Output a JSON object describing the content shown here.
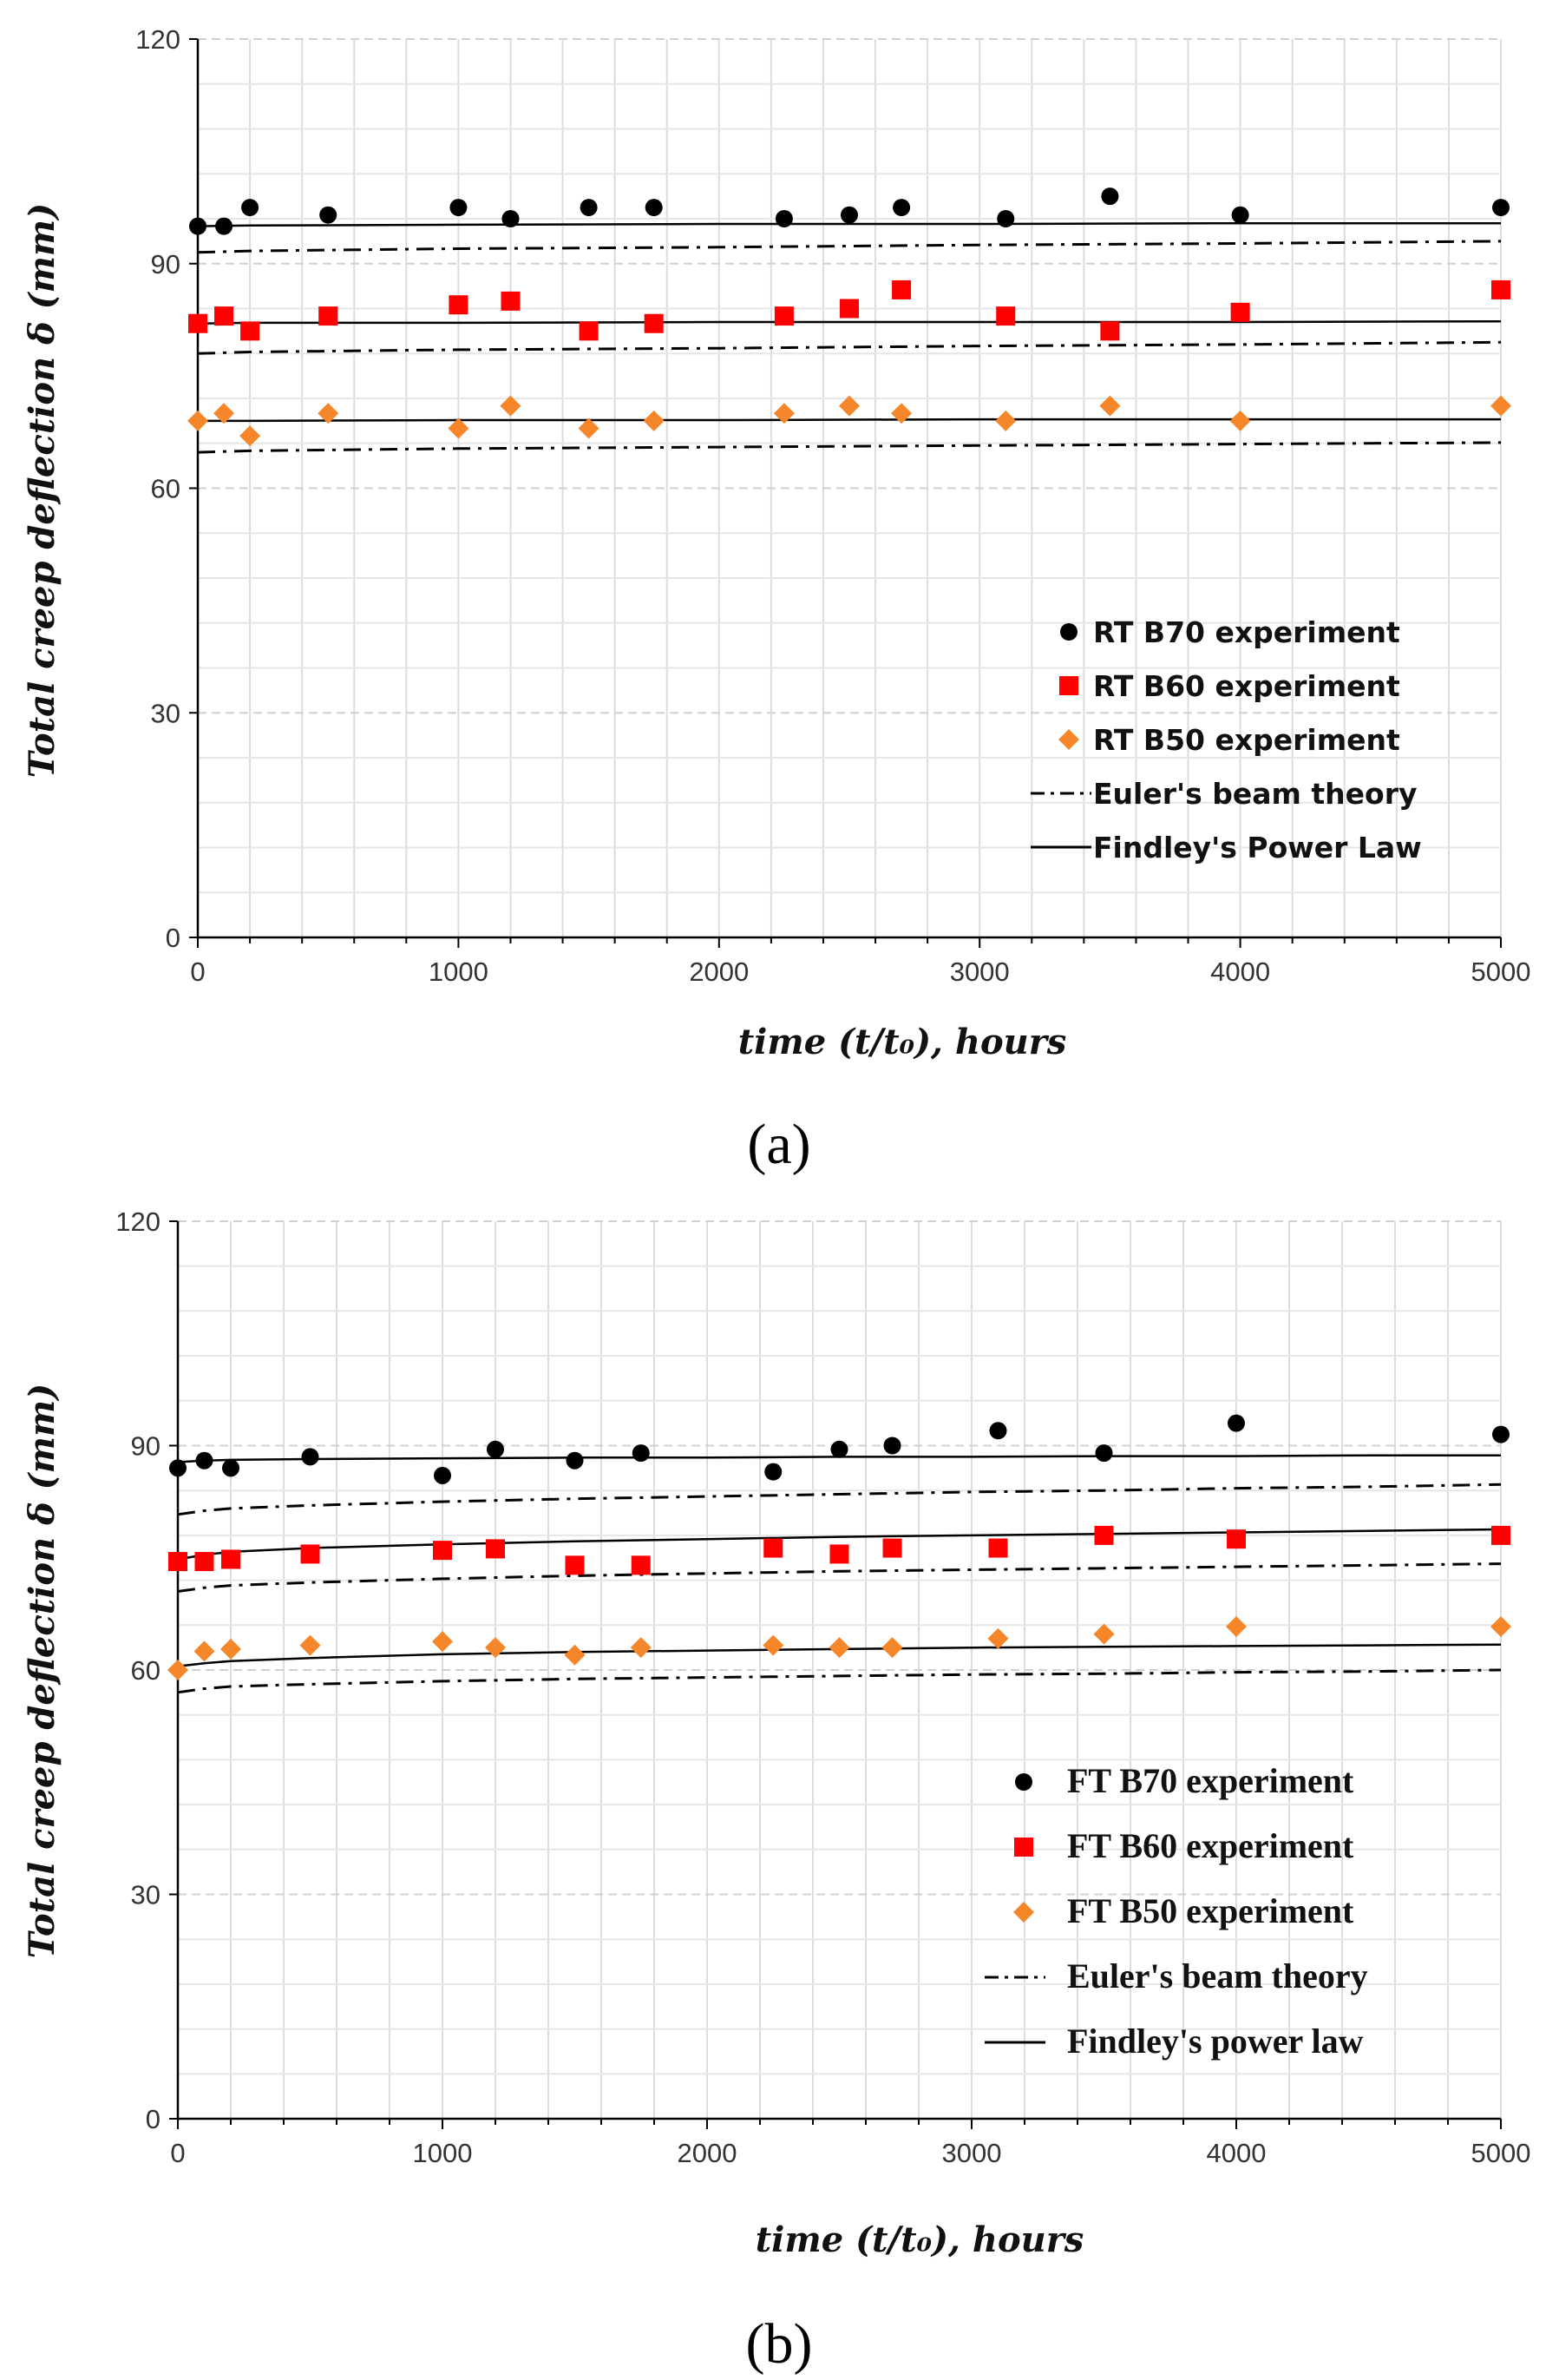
{
  "chart_data": [
    {
      "type": "scatter",
      "panel_label": "(a)",
      "ylabel": "Total creep deflection δ (mm)",
      "xlabel": "time (t/t₀), hours",
      "xlim": [
        0,
        5000
      ],
      "ylim": [
        0,
        120
      ],
      "xticks": [
        "0",
        "1000",
        "2000",
        "3000",
        "4000",
        "5000"
      ],
      "yticks": [
        "0",
        "30",
        "60",
        "90",
        "120"
      ],
      "grid": true,
      "legend_position": "lower-right",
      "legend": [
        {
          "label": "RT B70 experiment",
          "marker": "circle",
          "color": "#000000"
        },
        {
          "label": "RT B60 experiment",
          "marker": "square",
          "color": "#ff0000"
        },
        {
          "label": "RT B50 experiment",
          "marker": "diamond",
          "color": "#f5862a"
        },
        {
          "label": "Euler's beam theory",
          "line": "dashdot",
          "color": "#000000"
        },
        {
          "label": "Findley's Power Law",
          "line": "solid",
          "color": "#000000"
        }
      ],
      "series": [
        {
          "name": "RT B70 experiment",
          "marker": "circle",
          "color": "#000000",
          "x": [
            0,
            100,
            200,
            500,
            1000,
            1200,
            1500,
            1750,
            2250,
            2500,
            2700,
            3100,
            3500,
            4000,
            5000
          ],
          "y": [
            95,
            95,
            97.5,
            96.5,
            97.5,
            96,
            97.5,
            97.5,
            96,
            96.5,
            97.5,
            96,
            99,
            96.5,
            97.5
          ]
        },
        {
          "name": "RT B60 experiment",
          "marker": "square",
          "color": "#ff0000",
          "x": [
            0,
            100,
            200,
            500,
            1000,
            1200,
            1500,
            1750,
            2250,
            2500,
            2700,
            3100,
            3500,
            4000,
            5000
          ],
          "y": [
            82,
            83,
            81,
            83,
            84.5,
            85,
            81,
            82,
            83,
            84,
            86.5,
            83,
            81,
            83.5,
            86.5
          ]
        },
        {
          "name": "RT B50 experiment",
          "marker": "diamond",
          "color": "#f5862a",
          "x": [
            0,
            100,
            200,
            500,
            1000,
            1200,
            1500,
            1750,
            2250,
            2500,
            2700,
            3100,
            3500,
            4000,
            5000
          ],
          "y": [
            69,
            70,
            67,
            70,
            68,
            71,
            68,
            69,
            70,
            71,
            70,
            69,
            71,
            69,
            71
          ]
        },
        {
          "name": "Euler's beam theory (B70)",
          "line": "dashdot",
          "color": "#000000",
          "x": [
            0,
            200,
            1000,
            2000,
            3000,
            4000,
            5000
          ],
          "y": [
            91.5,
            91.7,
            92.0,
            92.2,
            92.5,
            92.7,
            93.0
          ]
        },
        {
          "name": "Euler's beam theory (B60)",
          "line": "dashdot",
          "color": "#000000",
          "x": [
            0,
            200,
            1000,
            2000,
            3000,
            4000,
            5000
          ],
          "y": [
            78.0,
            78.2,
            78.5,
            78.7,
            79.0,
            79.2,
            79.5
          ]
        },
        {
          "name": "Euler's beam theory (B50)",
          "line": "dashdot",
          "color": "#000000",
          "x": [
            0,
            200,
            1000,
            2000,
            3000,
            4000,
            5000
          ],
          "y": [
            64.8,
            65.0,
            65.3,
            65.5,
            65.7,
            65.9,
            66.1
          ]
        },
        {
          "name": "Findley's Power Law (B70)",
          "line": "solid",
          "color": "#000000",
          "x": [
            0,
            200,
            1000,
            2000,
            3000,
            4000,
            5000
          ],
          "y": [
            95.0,
            95.1,
            95.2,
            95.3,
            95.3,
            95.4,
            95.4
          ]
        },
        {
          "name": "Findley's Power Law (B60)",
          "line": "solid",
          "color": "#000000",
          "x": [
            0,
            200,
            1000,
            2000,
            3000,
            4000,
            5000
          ],
          "y": [
            82.0,
            82.1,
            82.1,
            82.2,
            82.2,
            82.2,
            82.3
          ]
        },
        {
          "name": "Findley's Power Law (B50)",
          "line": "solid",
          "color": "#000000",
          "x": [
            0,
            200,
            1000,
            2000,
            3000,
            4000,
            5000
          ],
          "y": [
            69.0,
            69.0,
            69.1,
            69.1,
            69.2,
            69.2,
            69.2
          ]
        }
      ]
    },
    {
      "type": "scatter",
      "panel_label": "(b)",
      "ylabel": "Total creep deflection δ (mm)",
      "xlabel": "time (t/t₀), hours",
      "xlim": [
        0,
        5000
      ],
      "ylim": [
        0,
        120
      ],
      "xticks": [
        "0",
        "1000",
        "2000",
        "3000",
        "4000",
        "5000"
      ],
      "yticks": [
        "0",
        "30",
        "60",
        "90",
        "120"
      ],
      "grid": true,
      "legend_position": "lower-right",
      "legend": [
        {
          "label": "FT  B70 experiment",
          "marker": "circle",
          "color": "#000000"
        },
        {
          "label": "FT  B60 experiment",
          "marker": "square",
          "color": "#ff0000"
        },
        {
          "label": "FT  B50 experiment",
          "marker": "diamond",
          "color": "#f5862a"
        },
        {
          "label": "Euler's beam theory",
          "line": "dashdot",
          "color": "#000000"
        },
        {
          "label": "Findley's power law",
          "line": "solid",
          "color": "#000000"
        }
      ],
      "series": [
        {
          "name": "FT B70 experiment",
          "marker": "circle",
          "color": "#000000",
          "x": [
            0,
            100,
            200,
            500,
            1000,
            1200,
            1500,
            1750,
            2250,
            2500,
            2700,
            3100,
            3500,
            4000,
            5000
          ],
          "y": [
            87,
            88,
            87,
            88.5,
            86,
            89.5,
            88,
            89,
            86.5,
            89.5,
            90,
            92,
            89,
            93,
            91.5
          ]
        },
        {
          "name": "FT B60 experiment",
          "marker": "square",
          "color": "#ff0000",
          "x": [
            0,
            100,
            200,
            500,
            1000,
            1200,
            1500,
            1750,
            2250,
            2500,
            2700,
            3100,
            3500,
            4000,
            5000
          ],
          "y": [
            74.5,
            74.5,
            74.8,
            75.5,
            76,
            76.2,
            74,
            74,
            76.3,
            75.5,
            76.3,
            76.3,
            78,
            77.5,
            78
          ]
        },
        {
          "name": "FT B50 experiment",
          "marker": "diamond",
          "color": "#f5862a",
          "x": [
            0,
            100,
            200,
            500,
            1000,
            1200,
            1500,
            1750,
            2250,
            2500,
            2700,
            3100,
            3500,
            4000,
            5000
          ],
          "y": [
            60,
            62.5,
            62.8,
            63.3,
            63.8,
            63,
            62,
            63,
            63.3,
            63,
            63,
            64.2,
            64.8,
            65.8,
            65.8
          ]
        },
        {
          "name": "Euler's beam theory (B70)",
          "line": "dashdot",
          "color": "#000000",
          "x": [
            0,
            100,
            200,
            500,
            1000,
            1500,
            2000,
            2500,
            3000,
            3500,
            4000,
            4500,
            5000
          ],
          "y": [
            80.8,
            81.3,
            81.6,
            82.0,
            82.5,
            82.9,
            83.2,
            83.5,
            83.8,
            84.0,
            84.3,
            84.5,
            84.8
          ]
        },
        {
          "name": "Euler's beam theory (B60)",
          "line": "dashdot",
          "color": "#000000",
          "x": [
            0,
            100,
            200,
            500,
            1000,
            1500,
            2000,
            2500,
            3000,
            3500,
            4000,
            4500,
            5000
          ],
          "y": [
            70.5,
            71.0,
            71.3,
            71.7,
            72.2,
            72.6,
            72.9,
            73.2,
            73.4,
            73.6,
            73.8,
            74.0,
            74.2
          ]
        },
        {
          "name": "Euler's beam theory (B50)",
          "line": "dashdot",
          "color": "#000000",
          "x": [
            0,
            100,
            200,
            500,
            1000,
            1500,
            2000,
            2500,
            3000,
            3500,
            4000,
            4500,
            5000
          ],
          "y": [
            57.0,
            57.5,
            57.8,
            58.1,
            58.5,
            58.8,
            59.0,
            59.2,
            59.4,
            59.5,
            59.7,
            59.8,
            60.0
          ]
        },
        {
          "name": "Findley's power law (B70)",
          "line": "solid",
          "color": "#000000",
          "x": [
            0,
            100,
            200,
            500,
            1000,
            1500,
            2000,
            2500,
            3000,
            3500,
            4000,
            4500,
            5000
          ],
          "y": [
            87.8,
            88.0,
            88.1,
            88.2,
            88.3,
            88.4,
            88.4,
            88.5,
            88.5,
            88.6,
            88.6,
            88.7,
            88.7
          ]
        },
        {
          "name": "Findley's power law (B60)",
          "line": "solid",
          "color": "#000000",
          "x": [
            0,
            100,
            200,
            500,
            1000,
            1500,
            2000,
            2500,
            3000,
            3500,
            4000,
            4500,
            5000
          ],
          "y": [
            74.8,
            75.4,
            75.8,
            76.3,
            76.8,
            77.2,
            77.5,
            77.8,
            78.0,
            78.2,
            78.4,
            78.6,
            78.8
          ]
        },
        {
          "name": "Findley's power law (B50)",
          "line": "solid",
          "color": "#000000",
          "x": [
            0,
            100,
            200,
            500,
            1000,
            1500,
            2000,
            2500,
            3000,
            3500,
            4000,
            4500,
            5000
          ],
          "y": [
            60.5,
            60.9,
            61.2,
            61.6,
            62.1,
            62.4,
            62.6,
            62.8,
            63.0,
            63.1,
            63.2,
            63.3,
            63.4
          ]
        }
      ]
    }
  ]
}
